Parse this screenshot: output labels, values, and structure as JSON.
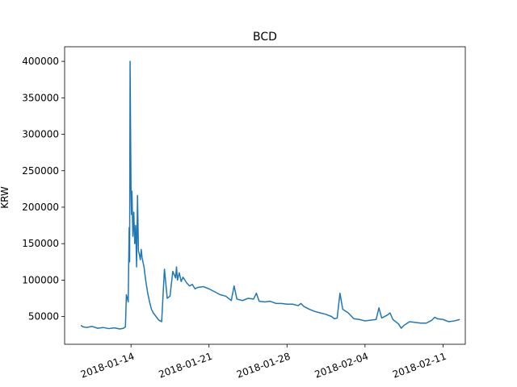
{
  "chart_data": {
    "type": "line",
    "title": "BCD",
    "xlabel": "",
    "ylabel": "KRW",
    "grid": false,
    "legend": "none",
    "line_color": "#1f77b4",
    "ylim": [
      12000,
      420000
    ],
    "xlim": [
      "2018-01-08T01:00",
      "2018-02-13T00:00"
    ],
    "xticks": [
      "2018-01-14",
      "2018-01-21",
      "2018-01-28",
      "2018-02-04",
      "2018-02-11"
    ],
    "yticks": [
      50000,
      100000,
      150000,
      200000,
      250000,
      300000,
      350000,
      400000
    ],
    "series": [
      {
        "x": [
          "2018-01-09T12:00",
          "2018-01-09T16:00",
          "2018-01-10T00:00",
          "2018-01-10T12:00",
          "2018-01-11T00:00",
          "2018-01-11T12:00",
          "2018-01-12T00:00",
          "2018-01-12T12:00",
          "2018-01-13T00:00",
          "2018-01-13T08:00",
          "2018-01-13T12:00",
          "2018-01-13T14:00",
          "2018-01-13T18:00",
          "2018-01-13T20:00",
          "2018-01-13T21:00",
          "2018-01-13T22:00",
          "2018-01-13T23:00",
          "2018-01-14T00:00",
          "2018-01-14T01:00",
          "2018-01-14T02:00",
          "2018-01-14T04:00",
          "2018-01-14T06:00",
          "2018-01-14T08:00",
          "2018-01-14T10:00",
          "2018-01-14T12:00",
          "2018-01-14T14:00",
          "2018-01-14T16:00",
          "2018-01-14T18:00",
          "2018-01-14T20:00",
          "2018-01-14T22:00",
          "2018-01-15T00:00",
          "2018-01-15T04:00",
          "2018-01-15T08:00",
          "2018-01-15T12:00",
          "2018-01-15T16:00",
          "2018-01-15T20:00",
          "2018-01-16T00:00",
          "2018-01-16T06:00",
          "2018-01-16T12:00",
          "2018-01-16T18:00",
          "2018-01-17T00:00",
          "2018-01-17T06:00",
          "2018-01-17T12:00",
          "2018-01-17T18:00",
          "2018-01-18T00:00",
          "2018-01-18T02:00",
          "2018-01-18T04:00",
          "2018-01-18T08:00",
          "2018-01-18T12:00",
          "2018-01-18T16:00",
          "2018-01-18T20:00",
          "2018-01-19T00:00",
          "2018-01-19T06:00",
          "2018-01-19T12:00",
          "2018-01-19T18:00",
          "2018-01-20T00:00",
          "2018-01-20T12:00",
          "2018-01-21T00:00",
          "2018-01-21T12:00",
          "2018-01-22T00:00",
          "2018-01-22T12:00",
          "2018-01-23T00:00",
          "2018-01-23T06:00",
          "2018-01-23T12:00",
          "2018-01-24T00:00",
          "2018-01-24T12:00",
          "2018-01-25T00:00",
          "2018-01-25T06:00",
          "2018-01-25T12:00",
          "2018-01-26T00:00",
          "2018-01-26T12:00",
          "2018-01-27T00:00",
          "2018-01-27T12:00",
          "2018-01-28T00:00",
          "2018-01-28T12:00",
          "2018-01-29T00:00",
          "2018-01-29T06:00",
          "2018-01-29T12:00",
          "2018-01-30T00:00",
          "2018-01-30T12:00",
          "2018-01-31T00:00",
          "2018-01-31T12:00",
          "2018-02-01T00:00",
          "2018-02-01T06:00",
          "2018-02-01T12:00",
          "2018-02-01T18:00",
          "2018-02-02T00:00",
          "2018-02-02T12:00",
          "2018-02-03T00:00",
          "2018-02-03T12:00",
          "2018-02-04T00:00",
          "2018-02-04T12:00",
          "2018-02-05T00:00",
          "2018-02-05T06:00",
          "2018-02-05T12:00",
          "2018-02-06T00:00",
          "2018-02-06T06:00",
          "2018-02-06T12:00",
          "2018-02-07T00:00",
          "2018-02-07T06:00",
          "2018-02-07T12:00",
          "2018-02-08T00:00",
          "2018-02-08T12:00",
          "2018-02-09T00:00",
          "2018-02-09T12:00",
          "2018-02-10T00:00",
          "2018-02-10T06:00",
          "2018-02-10T12:00",
          "2018-02-11T00:00",
          "2018-02-11T12:00",
          "2018-02-12T00:00",
          "2018-02-12T12:00"
        ],
        "y": [
          38000,
          36000,
          35000,
          36500,
          34000,
          35000,
          33500,
          34500,
          33000,
          34000,
          36000,
          80000,
          70000,
          172000,
          125000,
          400000,
          310000,
          225000,
          190000,
          222000,
          160000,
          193000,
          150000,
          175000,
          118000,
          216000,
          140000,
          135000,
          128000,
          142000,
          130000,
          118000,
          98000,
          82000,
          70000,
          60000,
          55000,
          50000,
          45000,
          43000,
          115000,
          75000,
          78000,
          112000,
          103000,
          118000,
          100000,
          110000,
          98000,
          104000,
          100000,
          96000,
          92000,
          94000,
          88000,
          90000,
          91000,
          88000,
          84000,
          80000,
          78000,
          72000,
          92000,
          74000,
          72000,
          75000,
          74000,
          82000,
          71000,
          70000,
          71000,
          68000,
          68000,
          67000,
          67000,
          65000,
          68000,
          64000,
          60000,
          57000,
          55000,
          53000,
          50000,
          47000,
          48000,
          82000,
          60000,
          55000,
          47000,
          46000,
          44000,
          45000,
          46000,
          62000,
          48000,
          52000,
          55000,
          46000,
          40000,
          34000,
          38000,
          43000,
          42000,
          41000,
          41000,
          45000,
          49000,
          47000,
          46000,
          43000,
          44000,
          46000
        ]
      }
    ]
  }
}
